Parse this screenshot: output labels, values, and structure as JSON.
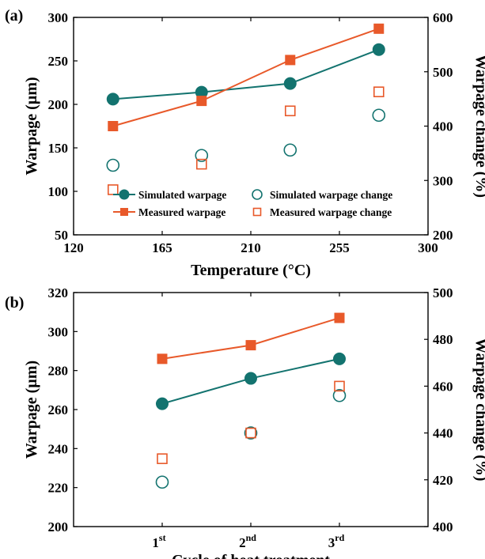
{
  "colors": {
    "simulated": "#13736f",
    "measured": "#e8592a",
    "axis": "#000000"
  },
  "chart_data": [
    {
      "panel": "(a)",
      "type": "line",
      "xlabel": "Temperature (°C)",
      "ylabel": "Warpage (µm)",
      "y2label": "Warpage change (%)",
      "xlim": [
        120,
        300
      ],
      "ylim": [
        50,
        300
      ],
      "y2lim": [
        200,
        600
      ],
      "xticks": [
        120,
        165,
        210,
        255,
        300
      ],
      "yticks": [
        50,
        100,
        150,
        200,
        250,
        300
      ],
      "y2ticks": [
        200,
        300,
        400,
        500,
        600
      ],
      "x": [
        140,
        185,
        230,
        275
      ],
      "legend_position": "lower-center",
      "grid": false,
      "series": [
        {
          "name": "Simulated warpage",
          "axis": "left",
          "style": "line-filled-circle",
          "color": "simulated",
          "values": [
            206,
            214,
            224,
            263
          ]
        },
        {
          "name": "Simulated warpage change",
          "axis": "right",
          "style": "open-circle",
          "color": "simulated",
          "values": [
            328,
            346,
            356,
            420
          ]
        },
        {
          "name": "Measured warpage",
          "axis": "left",
          "style": "line-filled-square",
          "color": "measured",
          "values": [
            175,
            204,
            251,
            287
          ]
        },
        {
          "name": "Measured warpage change",
          "axis": "right",
          "style": "open-square",
          "color": "measured",
          "values": [
            283,
            330,
            428,
            463
          ]
        }
      ]
    },
    {
      "panel": "(b)",
      "type": "line",
      "xlabel": "Cycle of heat treatment",
      "ylabel": "Warpage (µm)",
      "y2label": "Warpage change (%)",
      "categories": [
        {
          "base": "1",
          "sup": "st"
        },
        {
          "base": "2",
          "sup": "nd"
        },
        {
          "base": "3",
          "sup": "rd"
        }
      ],
      "ylim": [
        200,
        320
      ],
      "y2lim": [
        400,
        500
      ],
      "yticks": [
        200,
        220,
        240,
        260,
        280,
        300,
        320
      ],
      "y2ticks": [
        400,
        420,
        440,
        460,
        480,
        500
      ],
      "grid": false,
      "series": [
        {
          "name": "Simulated warpage",
          "axis": "left",
          "style": "line-filled-circle",
          "color": "simulated",
          "values": [
            263,
            276,
            286
          ]
        },
        {
          "name": "Simulated warpage change",
          "axis": "right",
          "style": "open-circle",
          "color": "simulated",
          "values": [
            419,
            440,
            456
          ]
        },
        {
          "name": "Measured warpage",
          "axis": "left",
          "style": "line-filled-square",
          "color": "measured",
          "values": [
            286,
            293,
            307
          ]
        },
        {
          "name": "Measured warpage change",
          "axis": "right",
          "style": "open-square",
          "color": "measured",
          "values": [
            429,
            440,
            460
          ]
        }
      ]
    }
  ]
}
